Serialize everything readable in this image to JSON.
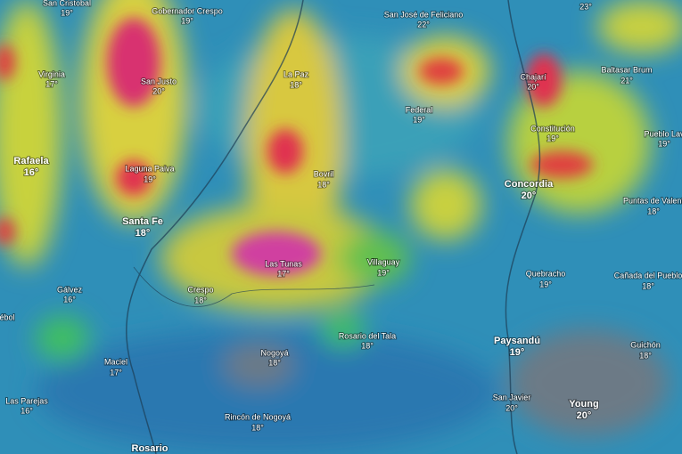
{
  "cities": [
    {
      "name": "San Cristobal",
      "temp": "19°",
      "big": false
    },
    {
      "name": "Gobernador Crespo",
      "temp": "19°",
      "big": false
    },
    {
      "name": "San José de Feliciano",
      "temp": "22°",
      "big": false
    },
    {
      "temp": "23°",
      "big": false
    },
    {
      "name": "Virginia",
      "temp": "17°",
      "big": false
    },
    {
      "name": "San Justo",
      "temp": "20°",
      "big": false
    },
    {
      "name": "La Paz",
      "temp": "18°",
      "big": false
    },
    {
      "name": "Federal",
      "temp": "19°",
      "big": false
    },
    {
      "name": "Chajarí",
      "temp": "20°",
      "big": false
    },
    {
      "name": "Baltasar Brum",
      "temp": "21°",
      "big": false
    },
    {
      "name": "Constitución",
      "temp": "19°",
      "big": false
    },
    {
      "name": "Pueblo Lav",
      "temp": "19°",
      "big": false
    },
    {
      "name": "Rafaela",
      "temp": "16°",
      "big": true
    },
    {
      "name": "Laguna Paiva",
      "temp": "19°",
      "big": false
    },
    {
      "name": "Bovril",
      "temp": "18°",
      "big": false
    },
    {
      "name": "Concordia",
      "temp": "20°",
      "big": true
    },
    {
      "name": "Puntas de Valent",
      "temp": "18°",
      "big": false
    },
    {
      "name": "Santa Fe",
      "temp": "18°",
      "big": true
    },
    {
      "name": "Las Tunas",
      "temp": "17°",
      "big": false
    },
    {
      "name": "Villaguay",
      "temp": "19°",
      "big": false
    },
    {
      "name": "Quebracho",
      "temp": "19°",
      "big": false
    },
    {
      "name": "Cañada del Pueblo",
      "temp": "18°",
      "big": false
    },
    {
      "name": "Gálvez",
      "temp": "16°",
      "big": false
    },
    {
      "name": "Crespo",
      "temp": "18°",
      "big": false
    },
    {
      "name": "ébol",
      "big": false
    },
    {
      "name": "Rosario del Tala",
      "temp": "18°",
      "big": false
    },
    {
      "name": "Paysandú",
      "temp": "19°",
      "big": true
    },
    {
      "name": "Guichón",
      "temp": "18°",
      "big": false
    },
    {
      "name": "Nogoyá",
      "temp": "18°",
      "big": false
    },
    {
      "name": "Maciel",
      "temp": "17°",
      "big": false
    },
    {
      "name": "Las Parejas",
      "temp": "16°",
      "big": false
    },
    {
      "name": "San Javier",
      "temp": "20°",
      "big": false
    },
    {
      "name": "Young",
      "temp": "20°",
      "big": true
    },
    {
      "name": "Rincón de Nogoyá",
      "temp": "18°",
      "big": false
    },
    {
      "name": "Rosario",
      "big": true
    }
  ]
}
